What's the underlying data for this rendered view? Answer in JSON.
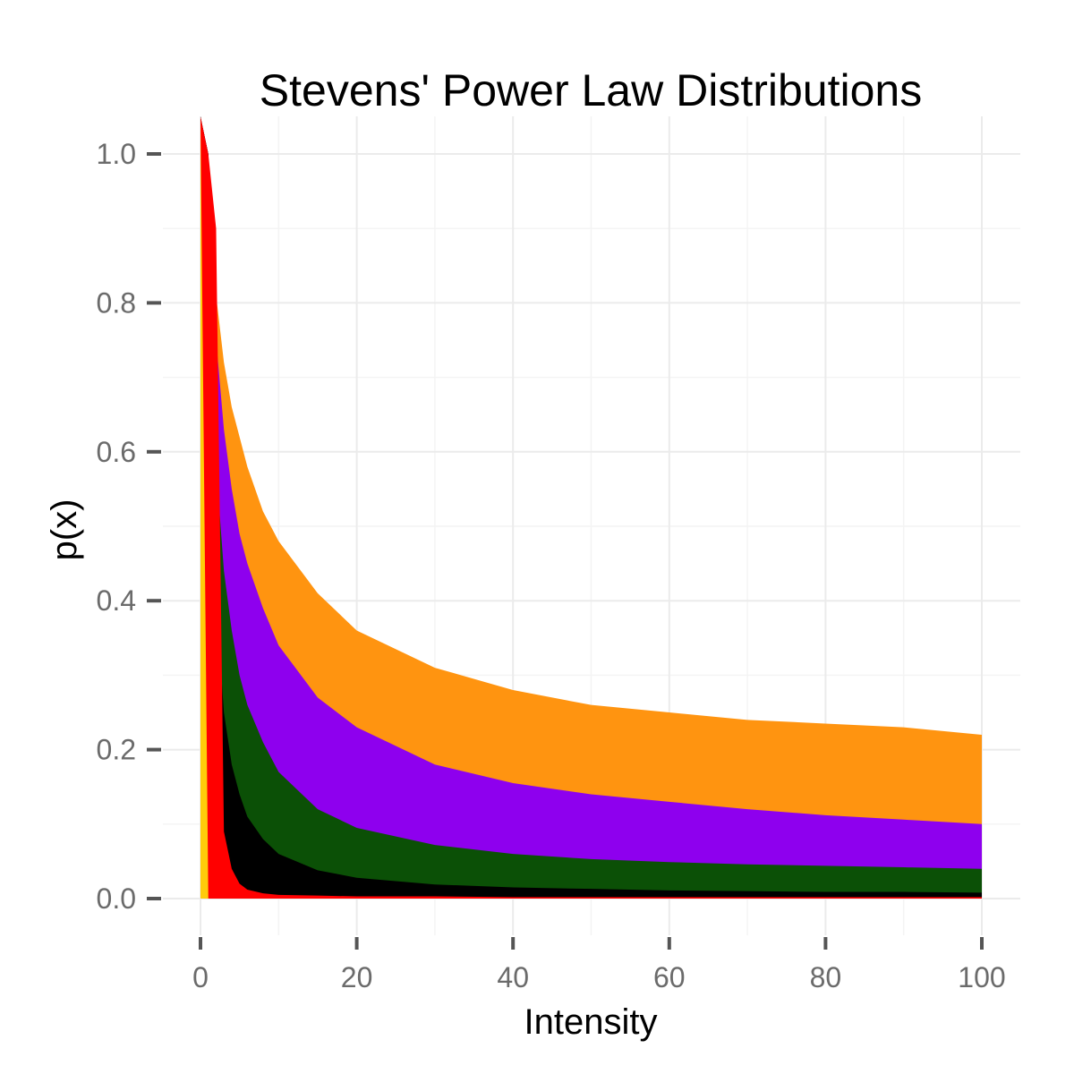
{
  "chart_data": {
    "type": "area",
    "title": "Stevens' Power Law Distributions",
    "xlabel": "Intensity",
    "ylabel": "p(x)",
    "xlim": [
      0,
      100
    ],
    "ylim": [
      0,
      1.0
    ],
    "x_ticks": [
      0,
      20,
      40,
      60,
      80,
      100
    ],
    "y_ticks": [
      0.0,
      0.2,
      0.4,
      0.6,
      0.8,
      1.0
    ],
    "x_tick_labels": [
      "0",
      "20",
      "40",
      "60",
      "80",
      "100"
    ],
    "y_tick_labels": [
      "0.0",
      "0.2",
      "0.4",
      "0.6",
      "0.8",
      "1.0"
    ],
    "grid": true,
    "legend": "none",
    "x": [
      0,
      1,
      2,
      3,
      4,
      5,
      6,
      8,
      10,
      15,
      20,
      30,
      40,
      50,
      60,
      70,
      80,
      90,
      100
    ],
    "series": [
      {
        "color": "#ff9410",
        "values": [
          1.05,
          1.0,
          0.81,
          0.72,
          0.66,
          0.62,
          0.58,
          0.52,
          0.48,
          0.41,
          0.36,
          0.31,
          0.28,
          0.26,
          0.25,
          0.24,
          0.235,
          0.23,
          0.22
        ]
      },
      {
        "color": "#8e00ee",
        "values": [
          1.05,
          1.0,
          0.75,
          0.63,
          0.55,
          0.49,
          0.45,
          0.39,
          0.34,
          0.27,
          0.23,
          0.18,
          0.155,
          0.14,
          0.13,
          0.12,
          0.112,
          0.106,
          0.1
        ]
      },
      {
        "color": "#0b5006",
        "values": [
          1.05,
          1.0,
          0.58,
          0.44,
          0.36,
          0.3,
          0.26,
          0.21,
          0.17,
          0.12,
          0.095,
          0.072,
          0.06,
          0.053,
          0.049,
          0.046,
          0.044,
          0.042,
          0.04
        ]
      },
      {
        "color": "#000000",
        "values": [
          1.05,
          1.0,
          0.4,
          0.25,
          0.18,
          0.14,
          0.11,
          0.08,
          0.06,
          0.038,
          0.028,
          0.019,
          0.015,
          0.013,
          0.011,
          0.01,
          0.009,
          0.009,
          0.008
        ]
      },
      {
        "color": "#ff0000",
        "values": [
          1.05,
          1.0,
          0.9,
          0.09,
          0.04,
          0.02,
          0.012,
          0.007,
          0.005,
          0.004,
          0.003,
          0.003,
          0.002,
          0.002,
          0.002,
          0.002,
          0.002,
          0.002,
          0.002
        ]
      },
      {
        "color": "#ffcc0a",
        "values": [
          1.05,
          0.0,
          0.0,
          0.0,
          0.0,
          0.0,
          0.0,
          0.0,
          0.0,
          0.0,
          0.0,
          0.0,
          0.0,
          0.0,
          0.0,
          0.0,
          0.0,
          0.0,
          0.0
        ]
      }
    ]
  }
}
